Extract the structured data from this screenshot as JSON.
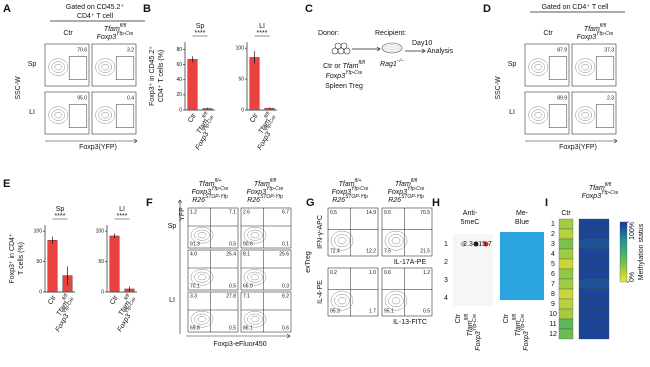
{
  "A": {
    "label": "A",
    "gate": [
      "Gated on CD45.2⁺",
      "CD4⁺ T cell"
    ],
    "col1": "Ctr",
    "col2": {
      "gene": "Tfam",
      "gene_sup": "fl/fl",
      "cre": "Foxp3",
      "cre_sup": "Yfp-Cre"
    },
    "rows": [
      "Sp",
      "LI"
    ],
    "y_axis": "SSC-W",
    "x_axis": "Foxp3(YFP)",
    "gate_values": [
      [
        "70.6",
        "3.2"
      ],
      [
        "95.0",
        "0.4"
      ]
    ]
  },
  "B": {
    "label": "B",
    "y_label": [
      "Foxp3⁺ in CD45.2⁺",
      "CD4⁺ T cells (%)"
    ],
    "plots": [
      {
        "title": "Sp",
        "signif": "****",
        "ylim": [
          0,
          90
        ],
        "yticks": [
          0,
          20,
          40,
          60,
          80
        ],
        "values": [
          67,
          2
        ],
        "errors": [
          4,
          1
        ],
        "color": "#e8433f",
        "categories": [
          "Ctr",
          {
            "gene": "Tfam",
            "gene_sup": "fl/fl",
            "cre": "Foxp3",
            "cre_sup": "Yfp-Cre"
          }
        ]
      },
      {
        "title": "LI",
        "signif": "****",
        "ylim": [
          0,
          110
        ],
        "yticks": [
          0,
          50,
          100
        ],
        "values": [
          85,
          3
        ],
        "errors": [
          10,
          1
        ],
        "color": "#e8433f",
        "categories": [
          "Ctr",
          {
            "gene": "Tfam",
            "gene_sup": "fl/fl",
            "cre": "Foxp3",
            "cre_sup": "Yfp-Cre"
          }
        ]
      }
    ]
  },
  "C": {
    "label": "C",
    "donor": "Donor:",
    "recipient": "Recipient:",
    "day": "Day10",
    "analysis": "Analysis",
    "donor_cells": {
      "prefix": "Ctr or ",
      "gene": "Tfam",
      "gene_sup": "fl/fl",
      "cre": "Foxp3",
      "cre_sup": "Yfp-Cre"
    },
    "cell_type": "Spleen Treg",
    "host": {
      "gene": "Rag1",
      "gene_sup": "−/−"
    }
  },
  "D": {
    "label": "D",
    "gate": [
      "Gated on CD4⁺ T cell"
    ],
    "col1": "Ctr",
    "col2": {
      "gene": "Tfam",
      "gene_sup": "fl/fl",
      "cre": "Foxp3",
      "cre_sup": "Yfp-Cre"
    },
    "rows": [
      "Sp",
      "LI"
    ],
    "y_axis": "SSC-W",
    "x_axis": "Foxp3(YFP)",
    "gate_values": [
      [
        "87.9",
        "37.3"
      ],
      [
        "89.9",
        "2.3"
      ]
    ]
  },
  "E": {
    "label": "E",
    "y_label": [
      "Foxp3⁺ in CD4⁺",
      "T cells (%)"
    ],
    "plots": [
      {
        "title": "Sp",
        "signif": "****",
        "ylim": [
          0,
          110
        ],
        "yticks": [
          0,
          50,
          100
        ],
        "values": [
          85,
          27
        ],
        "errors": [
          6,
          15
        ],
        "color": "#e8433f",
        "categories": [
          "Ctr",
          {
            "gene": "Tfam",
            "gene_sup": "fl/fl",
            "cre": "Foxp3",
            "cre_sup": "Yfp-Cre"
          }
        ]
      },
      {
        "title": "LI",
        "signif": "****",
        "ylim": [
          0,
          110
        ],
        "yticks": [
          0,
          50,
          100
        ],
        "values": [
          92,
          5
        ],
        "errors": [
          4,
          4
        ],
        "color": "#e8433f",
        "categories": [
          "Ctr",
          {
            "gene": "Tfam",
            "gene_sup": "fl/fl",
            "cre": "Foxp3",
            "cre_sup": "Yfp-Cre"
          }
        ]
      }
    ]
  },
  "F": {
    "label": "F",
    "columns": [
      {
        "gene": "Tfam",
        "gene_sup": "fl/+",
        "cre": "Foxp3",
        "cre_sup": "Yfp-Cre",
        "rep": "R26",
        "rep_sup": "STOP-Yfp"
      },
      {
        "gene": "Tfam",
        "gene_sup": "fl/fl",
        "cre": "Foxp3",
        "cre_sup": "Yfp-Cre",
        "rep": "R26",
        "rep_sup": "STOP-Yfp"
      }
    ],
    "rows": [
      "Sp",
      "LI"
    ],
    "y_axis": "YFP",
    "x_axis": "Foxp3-eFluor450",
    "quadrants": [
      [
        [
          "1.2",
          "7.1",
          "91.3",
          "0.5"
        ],
        [
          "2.6",
          "6.7",
          "90.6",
          "0.1"
        ]
      ],
      [
        [
          "4.0",
          "25.4",
          "70.1",
          "0.5"
        ],
        [
          "8.1",
          "25.6",
          "66.0",
          "0.3"
        ]
      ],
      [
        [
          "3.3",
          "27.8",
          "69.8",
          "0.5"
        ],
        [
          "7.1",
          "6.2",
          "86.1",
          "0.6"
        ]
      ]
    ]
  },
  "G": {
    "label": "G",
    "columns": [
      {
        "gene": "Tfam",
        "gene_sup": "fl/+",
        "cre": "Foxp3",
        "cre_sup": "Yfp-Cre",
        "rep": "R26",
        "rep_sup": "STOP-Yfp"
      },
      {
        "gene": "Tfam",
        "gene_sup": "fl/fl",
        "cre": "Foxp3",
        "cre_sup": "Yfp-Cre",
        "rep": "R26",
        "rep_sup": "STOP-Yfp"
      }
    ],
    "row_group": "exTreg",
    "y_axes": [
      "IFN-γ-APC",
      "IL-4-PE"
    ],
    "x_axes": [
      "IL-17A-PE",
      "IL-13-FITC"
    ],
    "quadrants": [
      [
        [
          "0.5",
          "14.9",
          "72.4",
          "12.2"
        ],
        [
          "0.5",
          "70.5",
          "7.5",
          "21.5"
        ]
      ],
      [
        [
          "0.2",
          "1.0",
          "95.3",
          "1.7"
        ],
        [
          "0.6",
          "1.2",
          "95.1",
          "0.5"
        ]
      ]
    ]
  },
  "H": {
    "label": "H",
    "blots": [
      [
        "Anti-",
        "5meC"
      ],
      [
        "Me-",
        "Blue"
      ]
    ],
    "rows": [
      "1",
      "2",
      "3",
      "4"
    ],
    "spot_values": [
      "2.3",
      "15.7"
    ],
    "lanes": [
      [
        "Ctr",
        {
          "gene": "Tfam",
          "gene_sup": "fl/fl",
          "cre": "Foxp3",
          "cre_sup": "Yfp-Cre"
        }
      ],
      [
        "Ctr",
        {
          "gene": "Tfam",
          "gene_sup": "fl/fl",
          "cre": "Foxp3",
          "cre_sup": "Yfp-Cre"
        }
      ]
    ]
  },
  "I": {
    "label": "I",
    "columns": [
      "Ctr",
      {
        "gene": "Tfam",
        "gene_sup": "fl/fl",
        "cre": "Foxp3",
        "cre_sup": "Yfp-Cre"
      }
    ],
    "rows": [
      "1",
      "2",
      "3",
      "4",
      "5",
      "6",
      "7",
      "8",
      "9",
      "10",
      "11",
      "12"
    ],
    "values": [
      [
        20,
        15,
        30,
        20,
        10,
        25,
        20,
        10,
        15,
        20,
        40,
        35
      ],
      [
        95,
        95,
        90,
        95,
        95,
        95,
        90,
        95,
        95,
        95,
        95,
        95
      ]
    ],
    "legend_ticks": [
      {
        "value": 100,
        "label": "100%"
      },
      {
        "value": 0,
        "label": "0%"
      }
    ],
    "legend_title": "Methylation status"
  }
}
